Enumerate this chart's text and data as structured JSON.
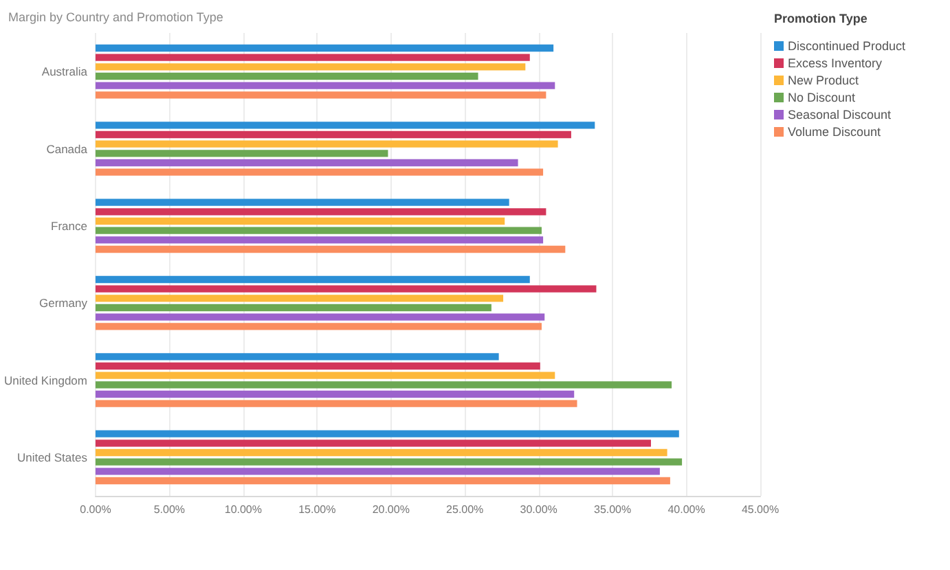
{
  "chart_data": {
    "type": "bar",
    "orientation": "horizontal",
    "title": "Margin by Country and Promotion Type",
    "legend_title": "Promotion Type",
    "legend": "top right",
    "grid": "x",
    "categories": [
      "Australia",
      "Canada",
      "France",
      "Germany",
      "United Kingdom",
      "United States"
    ],
    "series": [
      {
        "name": "Discontinued Product",
        "color": "#2b8fd6",
        "values": [
          31.0,
          33.8,
          28.0,
          29.4,
          27.3,
          39.5
        ]
      },
      {
        "name": "Excess Inventory",
        "color": "#d3365a",
        "values": [
          29.4,
          32.2,
          30.5,
          33.9,
          30.1,
          37.6
        ]
      },
      {
        "name": "New Product",
        "color": "#fdb83a",
        "values": [
          29.1,
          31.3,
          27.7,
          27.6,
          31.1,
          38.7
        ]
      },
      {
        "name": "No Discount",
        "color": "#6ca853",
        "values": [
          25.9,
          19.8,
          30.2,
          26.8,
          39.0,
          39.7
        ]
      },
      {
        "name": "Seasonal Discount",
        "color": "#9c62cc",
        "values": [
          31.1,
          28.6,
          30.3,
          30.4,
          32.4,
          38.2
        ]
      },
      {
        "name": "Volume Discount",
        "color": "#fa8d5e",
        "values": [
          30.5,
          30.3,
          31.8,
          30.2,
          32.6,
          38.9
        ]
      }
    ],
    "xlim": [
      0,
      45
    ],
    "xticks": [
      {
        "value": 0,
        "label": "0.00%"
      },
      {
        "value": 5,
        "label": "5.00%"
      },
      {
        "value": 10,
        "label": "10.00%"
      },
      {
        "value": 15,
        "label": "15.00%"
      },
      {
        "value": 20,
        "label": "20.00%"
      },
      {
        "value": 25,
        "label": "25.00%"
      },
      {
        "value": 30,
        "label": "30.00%"
      },
      {
        "value": 35,
        "label": "35.00%"
      },
      {
        "value": 40,
        "label": "40.00%"
      },
      {
        "value": 45,
        "label": "45.00%"
      }
    ]
  }
}
